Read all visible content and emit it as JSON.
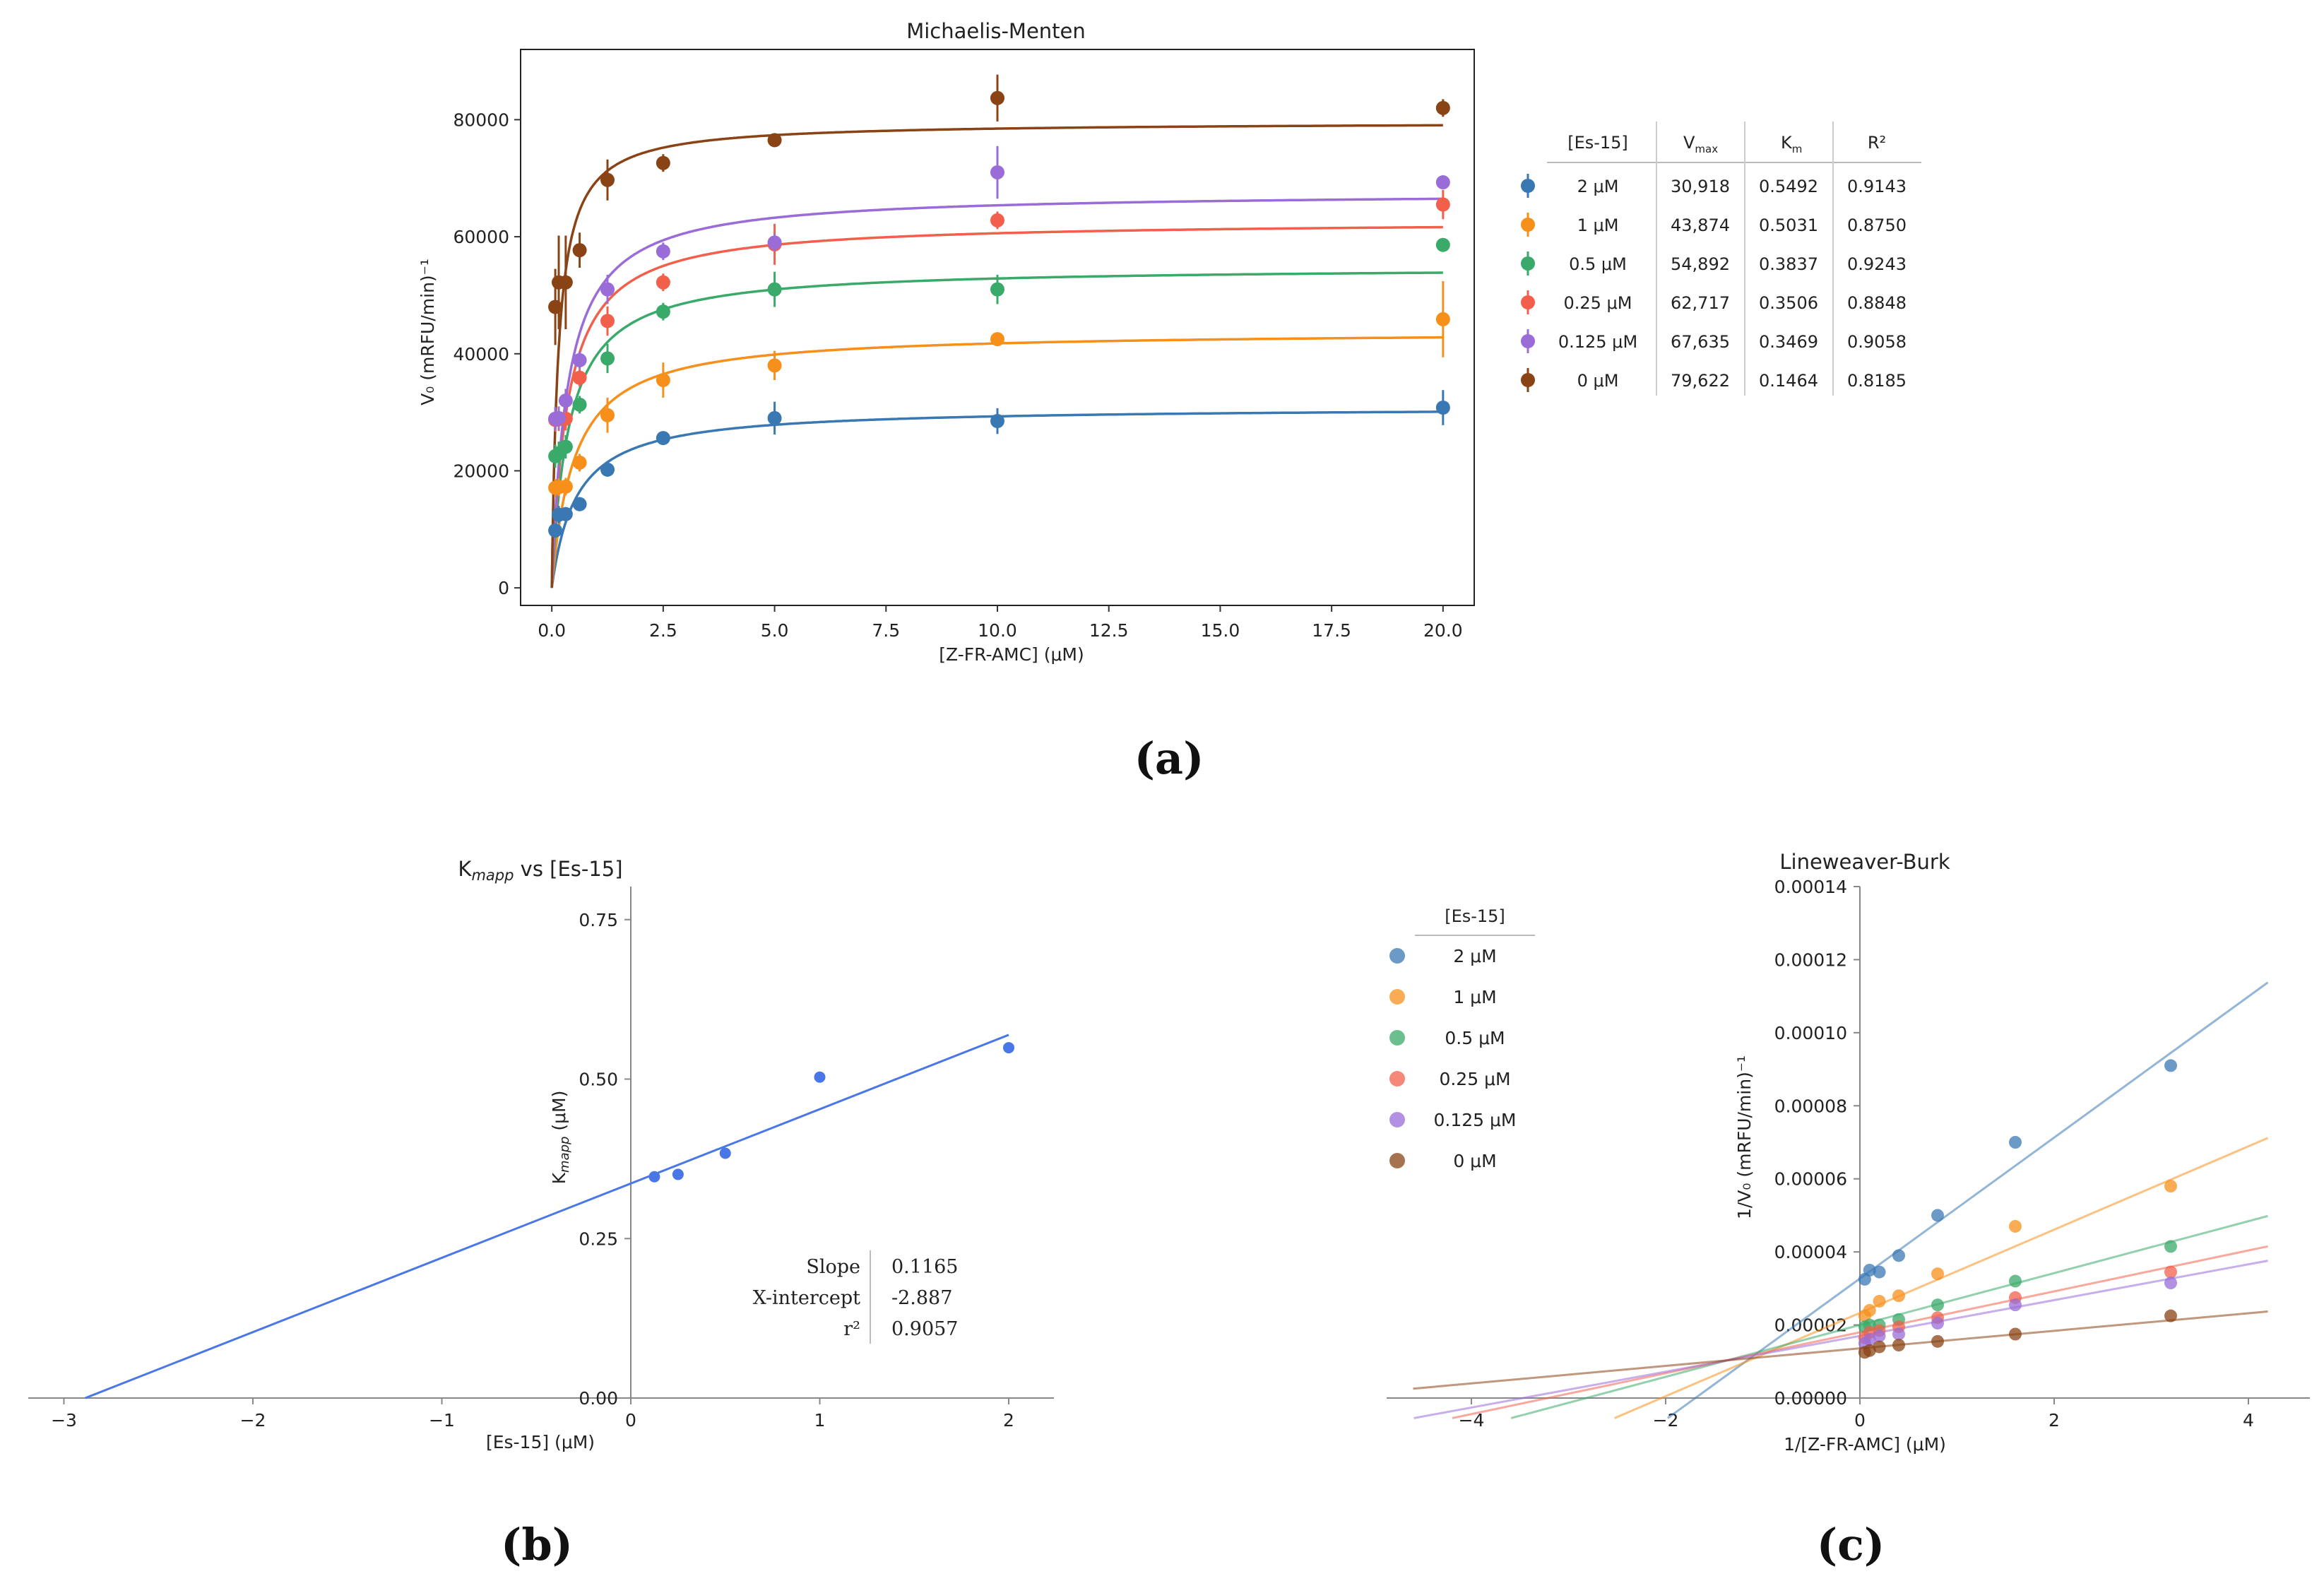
{
  "colors": {
    "c2": "#3a78b4",
    "c1": "#f7901b",
    "c05": "#3aaa6a",
    "c025": "#f2604b",
    "c0125": "#9a6cd8",
    "c0": "#8a4314",
    "kmapp": "#4a77e8",
    "axis": "#333333"
  },
  "chart_data": [
    {
      "id": "a",
      "panel_label": "(a)",
      "type": "scatter",
      "title": "Michaelis-Menten",
      "xlabel": "[Z-FR-AMC] (μM)",
      "ylabel": "V₀ (mRFU/min)⁻¹",
      "xlim": [
        -0.7,
        20.7
      ],
      "ylim": [
        -3000,
        92000
      ],
      "xticks": [
        "0.0",
        "2.5",
        "5.0",
        "7.5",
        "10.0",
        "12.5",
        "15.0",
        "17.5",
        "20.0"
      ],
      "yticks": [
        "0",
        "20000",
        "40000",
        "60000",
        "80000"
      ],
      "x": [
        0.078,
        0.156,
        0.3125,
        0.625,
        1.25,
        2.5,
        5,
        10,
        20
      ],
      "series": [
        {
          "name": "2 μM",
          "color_key": "c2",
          "vmax": 30918,
          "km": 0.5492,
          "values": [
            9800,
            12500,
            12600,
            14300,
            20200,
            25600,
            29000,
            28500,
            30800
          ],
          "errors": [
            1200,
            1500,
            1200,
            1200,
            1200,
            1000,
            2800,
            2200,
            3000
          ]
        },
        {
          "name": "1 μM",
          "color_key": "c1",
          "vmax": 43874,
          "km": 0.5031,
          "values": [
            17100,
            17200,
            17300,
            21400,
            29500,
            35500,
            38000,
            42500,
            45900
          ],
          "errors": [
            1500,
            1500,
            1500,
            1500,
            3000,
            3000,
            2500,
            1000,
            6500
          ]
        },
        {
          "name": "0.5 μM",
          "color_key": "c05",
          "vmax": 54892,
          "km": 0.3837,
          "values": [
            22500,
            23000,
            24100,
            31300,
            39200,
            47200,
            51000,
            51000,
            58600
          ],
          "errors": [
            2000,
            2000,
            2000,
            1500,
            2500,
            1500,
            3000,
            2500,
            1000
          ]
        },
        {
          "name": "0.25 μM",
          "color_key": "c025",
          "vmax": 62717,
          "km": 0.3506,
          "values": [
            28700,
            28800,
            28900,
            35900,
            45600,
            52200,
            58700,
            62800,
            65500
          ],
          "errors": [
            2000,
            2000,
            2000,
            1500,
            2500,
            1500,
            3500,
            1500,
            2500
          ]
        },
        {
          "name": "0.125 μM",
          "color_key": "c0125",
          "vmax": 67635,
          "km": 0.3469,
          "values": [
            28900,
            29000,
            32000,
            38900,
            51000,
            57500,
            59000,
            71000,
            69300
          ],
          "errors": [
            2000,
            2000,
            2000,
            1500,
            2500,
            1500,
            1500,
            4500,
            1000
          ]
        },
        {
          "name": "0 μM",
          "color_key": "c0",
          "vmax": 79622,
          "km": 0.1464,
          "values": [
            48000,
            52200,
            52200,
            57700,
            69700,
            72600,
            76500,
            83700,
            82000
          ],
          "errors": [
            6500,
            8000,
            8000,
            3000,
            3500,
            1500,
            1000,
            4000,
            1500
          ]
        }
      ],
      "table": {
        "headers": [
          "[Es-15]",
          "V",
          "max",
          "K",
          "m",
          "R²"
        ],
        "rows": [
          [
            "2 μM",
            "30,918",
            "0.5492",
            "0.9143"
          ],
          [
            "1 μM",
            "43,874",
            "0.5031",
            "0.8750"
          ],
          [
            "0.5 μM",
            "54,892",
            "0.3837",
            "0.9243"
          ],
          [
            "0.25 μM",
            "62,717",
            "0.3506",
            "0.8848"
          ],
          [
            "0.125 μM",
            "67,635",
            "0.3469",
            "0.9058"
          ],
          [
            "0 μM",
            "79,622",
            "0.1464",
            "0.8185"
          ]
        ]
      }
    },
    {
      "id": "b",
      "panel_label": "(b)",
      "type": "scatter",
      "title": "K",
      "title_sub": "mapp",
      "title_rest": " vs [Es-15]",
      "xlabel": "[Es-15] (μM)",
      "ylabel": "K",
      "ylabel_sub": "mapp",
      "ylabel_rest": " (μM)",
      "xlim": [
        -3.2,
        2.25
      ],
      "ylim": [
        0,
        0.78
      ],
      "xticks": [
        "−3",
        "−2",
        "−1",
        "0",
        "1",
        "2"
      ],
      "yticks": [
        "0.00",
        "0.25",
        "0.50",
        "0.75"
      ],
      "x": [
        0.125,
        0.25,
        0.5,
        1,
        2
      ],
      "values": [
        0.3469,
        0.3506,
        0.3837,
        0.5031,
        0.5492
      ],
      "fit": {
        "slope": 0.1165,
        "intercept": 0.3363,
        "x_from": -2.887,
        "x_to": 2.0
      },
      "stats": [
        {
          "label": "Slope",
          "value": "0.1165"
        },
        {
          "label": "X-intercept",
          "value": "-2.887"
        },
        {
          "label": "r²",
          "value": "0.9057"
        }
      ]
    },
    {
      "id": "c",
      "panel_label": "(c)",
      "type": "scatter",
      "title": "Lineweaver-Burk",
      "xlabel": "1/[Z-FR-AMC] (μM)",
      "ylabel": "1/V₀ (mRFU/min)⁻¹",
      "xlim": [
        -5,
        4.6
      ],
      "ylim": [
        0,
        0.00014
      ],
      "xticks": [
        "−4",
        "−2",
        "0",
        "2",
        "4"
      ],
      "yticks": [
        "0.00000",
        "0.00002",
        "0.00004",
        "0.00006",
        "0.00008",
        "0.00010",
        "0.00012",
        "0.00014"
      ],
      "legend_title": "[Es-15]",
      "x": [
        0.05,
        0.1,
        0.2,
        0.4,
        0.8,
        1.6,
        3.2
      ],
      "series": [
        {
          "name": "2 μM",
          "color_key": "c2",
          "slope": 1.93e-05,
          "intercept": 3.27e-05,
          "values": [
            3.25e-05,
            3.5e-05,
            3.45e-05,
            3.9e-05,
            5e-05,
            7e-05,
            9.1e-05
          ]
        },
        {
          "name": "1 μM",
          "color_key": "c1",
          "slope": 1.14e-05,
          "intercept": 2.33e-05,
          "values": [
            2.25e-05,
            2.4e-05,
            2.65e-05,
            2.8e-05,
            3.4e-05,
            4.7e-05,
            5.8e-05
          ]
        },
        {
          "name": "0.5 μM",
          "color_key": "c05",
          "slope": 7.1e-06,
          "intercept": 2e-05,
          "values": [
            1.95e-05,
            2e-05,
            2e-05,
            2.15e-05,
            2.55e-05,
            3.2e-05,
            4.15e-05
          ]
        },
        {
          "name": "0.25 μM",
          "color_key": "c025",
          "slope": 5.6e-06,
          "intercept": 1.8e-05,
          "values": [
            1.65e-05,
            1.8e-05,
            1.85e-05,
            1.95e-05,
            2.2e-05,
            2.75e-05,
            3.45e-05
          ]
        },
        {
          "name": "0.125 μM",
          "color_key": "c0125",
          "slope": 4.9e-06,
          "intercept": 1.7e-05,
          "values": [
            1.5e-05,
            1.6e-05,
            1.7e-05,
            1.75e-05,
            2.05e-05,
            2.55e-05,
            3.15e-05
          ]
        },
        {
          "name": "0 μM",
          "color_key": "c0",
          "slope": 2.4e-06,
          "intercept": 1.36e-05,
          "values": [
            1.25e-05,
            1.3e-05,
            1.4e-05,
            1.45e-05,
            1.55e-05,
            1.75e-05,
            2.25e-05
          ]
        }
      ]
    }
  ]
}
